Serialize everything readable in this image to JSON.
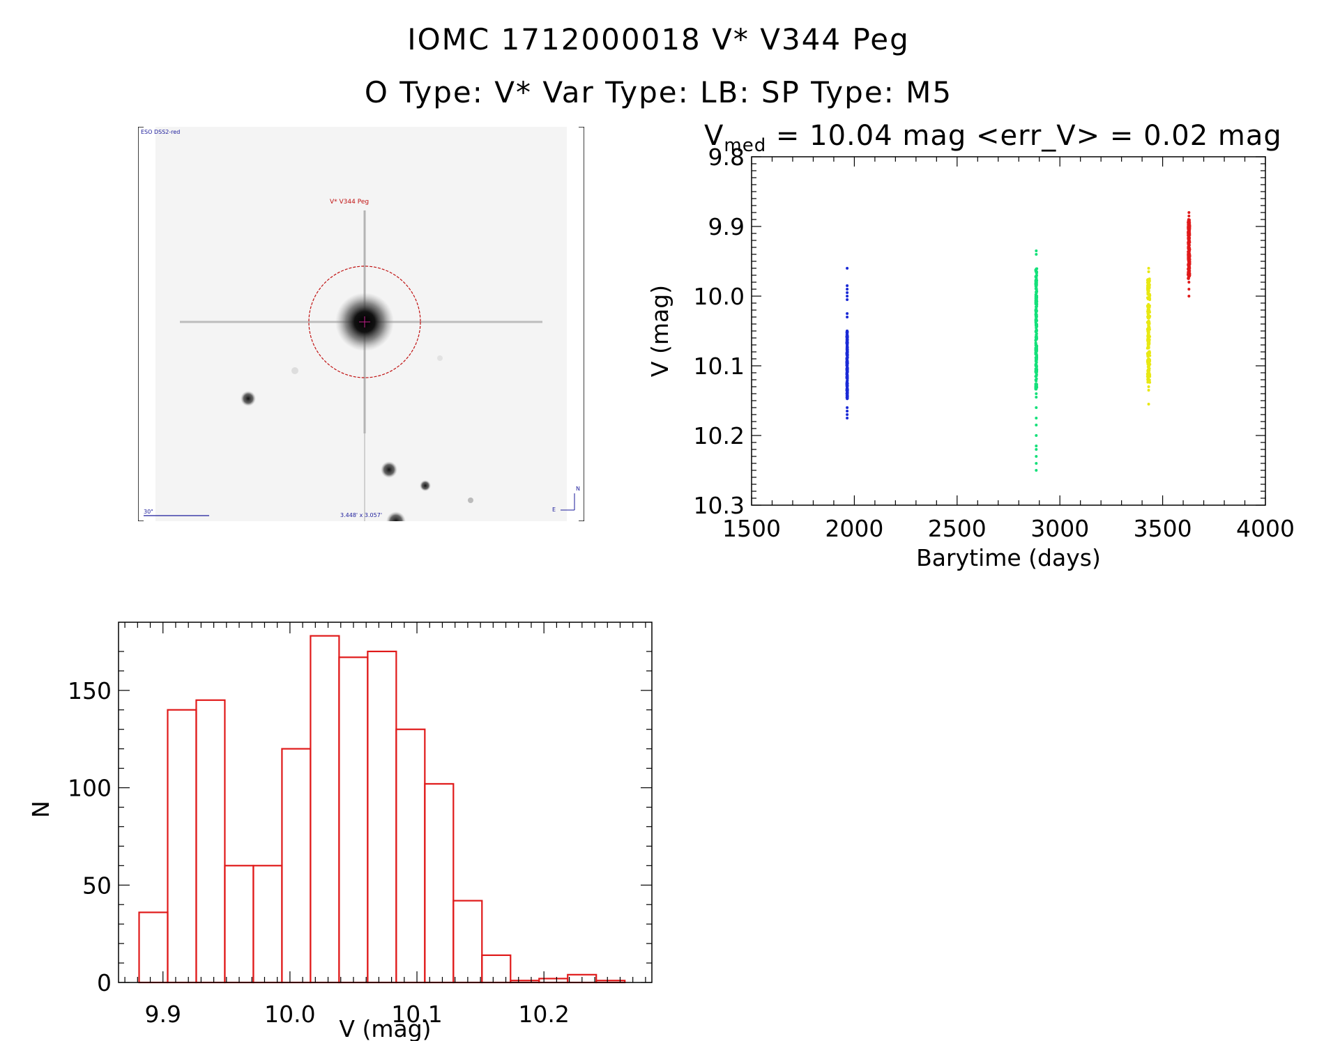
{
  "header": {
    "line1": "IOMC 1712000018    V* V344 Peg",
    "line2": "O Type: V*  Var Type: LB:  SP Type: M5",
    "stat_v": "V",
    "stat_sub": "med",
    "stat_rest": " = 10.04 mag <err_V> = 0.02 mag"
  },
  "finder": {
    "survey_label": "ESO DSS2-red",
    "target_label": "V* V344 Peg",
    "scale_label": "30\"",
    "fov_label": "3.448' x 3.057'",
    "north_label": "N",
    "east_label": "E"
  },
  "chart_data": [
    {
      "type": "scatter",
      "title": "",
      "xlabel": "Barytime (days)",
      "ylabel": "V (mag)",
      "xlim": [
        1500,
        4000
      ],
      "ylim": [
        10.3,
        9.8
      ],
      "y_inverted": true,
      "x_ticks": [
        "1500",
        "2000",
        "2500",
        "3000",
        "3500",
        "4000"
      ],
      "y_ticks": [
        "9.8",
        "9.9",
        "10.0",
        "10.1",
        "10.2",
        "10.3"
      ],
      "series": [
        {
          "color": "#1a2ad6",
          "x": 1965,
          "x_spread": 2,
          "ymin": 9.96,
          "ymax": 10.175,
          "dense_min": 10.05,
          "dense_max": 10.15,
          "outliers": [
            9.96,
            9.985,
            9.99,
            9.995,
            10.0,
            10.005,
            10.025,
            10.03,
            10.16,
            10.165,
            10.17,
            10.175
          ]
        },
        {
          "color": "#15e07a",
          "x": 2885,
          "x_spread": 3,
          "ymin": 9.935,
          "ymax": 10.25,
          "dense_min": 9.96,
          "dense_max": 10.135,
          "outliers": [
            9.935,
            9.94,
            10.14,
            10.145,
            10.16,
            10.175,
            10.185,
            10.2,
            10.215,
            10.22,
            10.23,
            10.24,
            10.25
          ]
        },
        {
          "color": "#e8e812",
          "x": 3432,
          "x_spread": 6,
          "ymin": 9.96,
          "ymax": 10.155,
          "dense_min": 9.975,
          "dense_max": 10.125,
          "outliers": [
            9.96,
            9.965,
            10.13,
            10.135,
            10.155
          ]
        },
        {
          "color": "#e01a1a",
          "x": 3628,
          "x_spread": 4,
          "ymin": 9.88,
          "ymax": 10.0,
          "dense_min": 9.89,
          "dense_max": 9.975,
          "outliers": [
            9.88,
            9.885,
            9.98,
            9.99,
            10.0
          ]
        }
      ]
    },
    {
      "type": "bar",
      "title": "",
      "xlabel": "V (mag)",
      "ylabel": "N",
      "xlim": [
        9.865,
        10.285
      ],
      "ylim": [
        0,
        185
      ],
      "x_ticks": [
        "9.9",
        "10.0",
        "10.1",
        "10.2"
      ],
      "y_ticks": [
        "0",
        "50",
        "100",
        "150"
      ],
      "color": "#e01a1a",
      "bin_width": 0.0225,
      "bin_start": 9.8812,
      "values": [
        36,
        140,
        145,
        60,
        60,
        120,
        178,
        167,
        170,
        130,
        102,
        42,
        14,
        1,
        2,
        4,
        1
      ]
    }
  ]
}
